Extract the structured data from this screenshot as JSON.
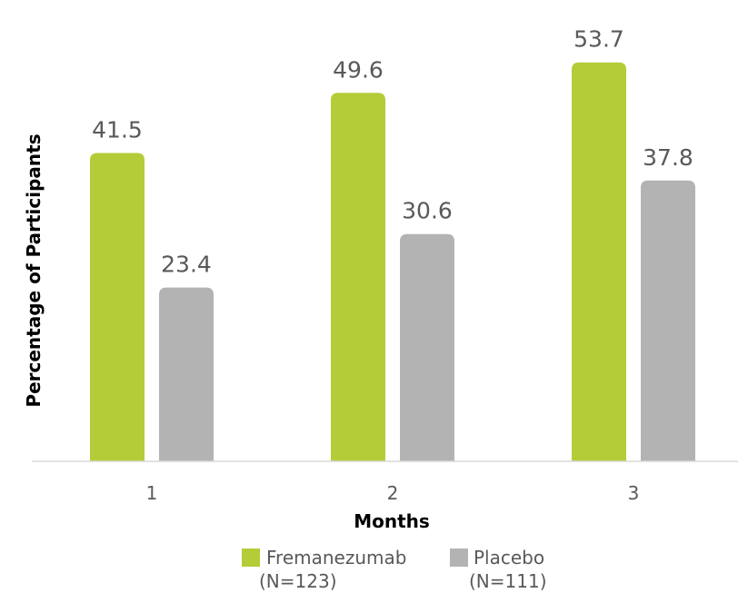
{
  "chart_data": {
    "type": "bar",
    "categories": [
      "1",
      "2",
      "3"
    ],
    "series": [
      {
        "name": "Fremanezumab",
        "sublabel": "(N=123)",
        "color": "#B3CC38",
        "values": [
          41.5,
          49.6,
          53.7
        ]
      },
      {
        "name": "Placebo",
        "sublabel": "(N=111)",
        "color": "#B3B3B3",
        "values": [
          23.4,
          30.6,
          37.8
        ]
      }
    ],
    "title": "",
    "xlabel": "Months",
    "ylabel": "Percentage of Participants",
    "ylim": [
      0,
      60
    ],
    "grid": false,
    "legend": "bottom",
    "axis_color": "#D9D9D9"
  }
}
